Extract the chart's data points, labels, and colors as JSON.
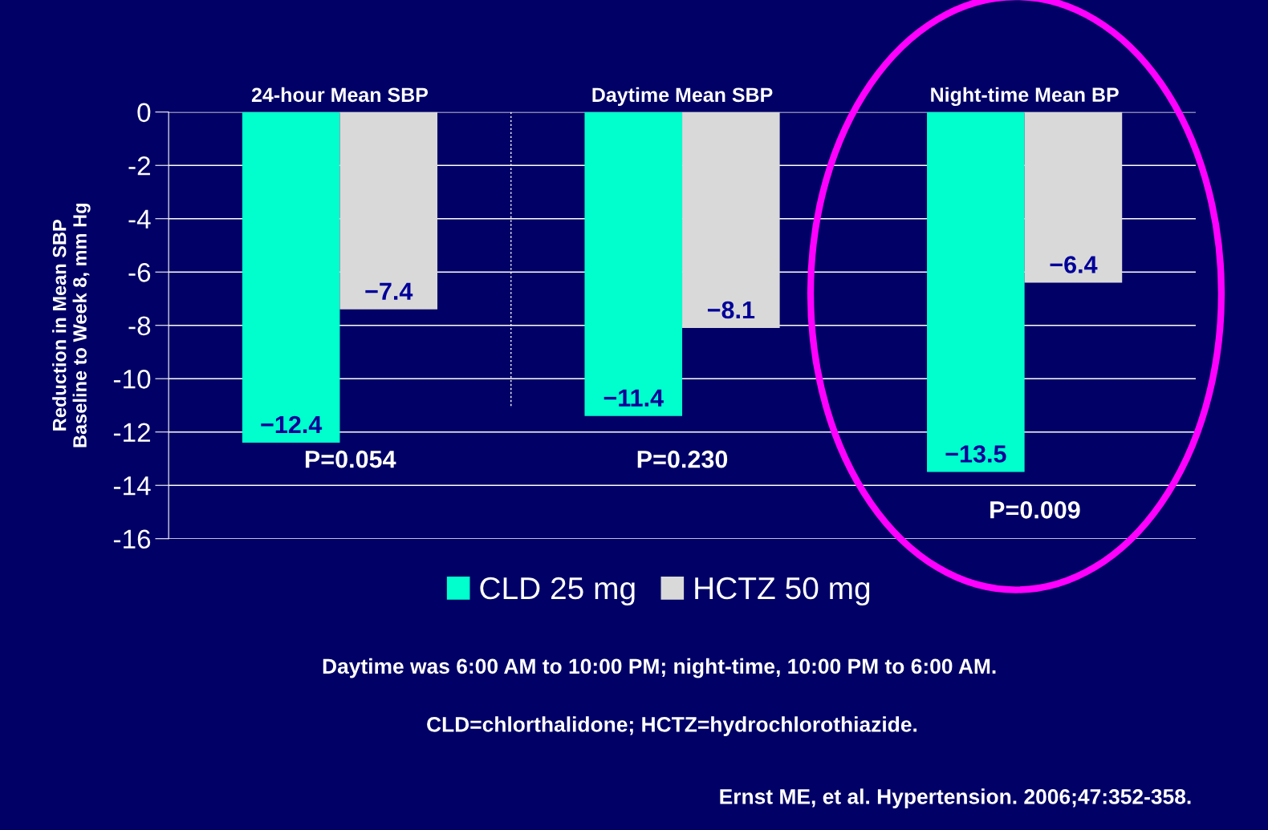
{
  "chart_data": {
    "type": "bar",
    "ylabel": "Reduction in Mean SBP\nBaseline to Week 8, mm Hg",
    "categories": [
      "24-hour Mean SBP",
      "Daytime Mean SBP",
      "Night-time Mean BP"
    ],
    "series": [
      {
        "name": "CLD 25 mg",
        "color": "#00ffcc",
        "values": [
          -12.4,
          -11.4,
          -13.5
        ],
        "value_labels": [
          "−12.4",
          "−11.4",
          "−13.5"
        ]
      },
      {
        "name": "HCTZ 50 mg",
        "color": "#d9d9d9",
        "values": [
          -7.4,
          -8.1,
          -6.4
        ],
        "value_labels": [
          "−7.4",
          "−8.1",
          "−6.4"
        ]
      }
    ],
    "ylim": [
      -16,
      0
    ],
    "yticks": [
      0,
      -2,
      -4,
      -6,
      -8,
      -10,
      -12,
      -14,
      -16
    ],
    "grid": "y",
    "legend": "bottom",
    "annotations": [
      "P=0.054",
      "P=0.230",
      "P=0.009",
      "Daytime was 6:00 AM to 10:00 PM; night-time, 10:00 PM to 6:00 AM.",
      "CLD=chlorthalidone; HCTZ=hydrochlorothiazide.",
      "Ernst ME, et al. Hypertension. 2006;47:352-358."
    ]
  }
}
